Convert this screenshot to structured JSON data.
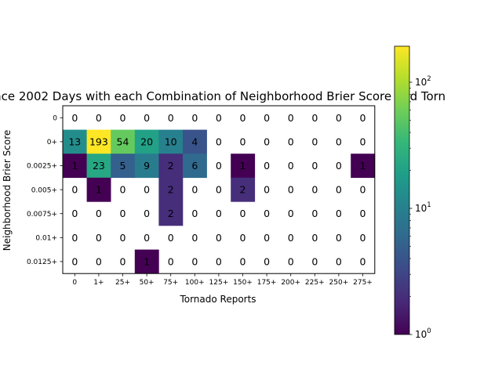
{
  "chart_data": {
    "type": "heatmap",
    "title": "ince 2002 Days with each Combination of Neighborhood Brier Score and Torn",
    "xlabel": "Tornado Reports",
    "ylabel": "Neighborhood Brier Score",
    "x_categories": [
      "0",
      "1+",
      "25+",
      "50+",
      "75+",
      "100+",
      "125+",
      "150+",
      "175+",
      "200+",
      "225+",
      "250+",
      "275+"
    ],
    "y_categories": [
      "0",
      "0+",
      "0.0025+",
      "0.005+",
      "0.0075+",
      "0.01+",
      "0.0125+"
    ],
    "values": [
      [
        0,
        0,
        0,
        0,
        0,
        0,
        0,
        0,
        0,
        0,
        0,
        0,
        0
      ],
      [
        13,
        193,
        54,
        20,
        10,
        4,
        0,
        0,
        0,
        0,
        0,
        0,
        0
      ],
      [
        1,
        23,
        5,
        9,
        2,
        6,
        0,
        1,
        0,
        0,
        0,
        0,
        1
      ],
      [
        0,
        1,
        0,
        0,
        2,
        0,
        0,
        2,
        0,
        0,
        0,
        0,
        0
      ],
      [
        0,
        0,
        0,
        0,
        2,
        0,
        0,
        0,
        0,
        0,
        0,
        0,
        0
      ],
      [
        0,
        0,
        0,
        0,
        0,
        0,
        0,
        0,
        0,
        0,
        0,
        0,
        0
      ],
      [
        0,
        0,
        0,
        1,
        0,
        0,
        0,
        0,
        0,
        0,
        0,
        0,
        0
      ]
    ],
    "colorscale": "viridis",
    "color_scale_type": "log",
    "color_range": [
      1,
      193
    ],
    "colorbar_ticks": [
      {
        "value": 1,
        "label_base": "10",
        "label_exp": "0"
      },
      {
        "value": 10,
        "label_base": "10",
        "label_exp": "1"
      },
      {
        "value": 100,
        "label_base": "10",
        "label_exp": "2"
      }
    ],
    "zero_cells": "blank (white)"
  }
}
